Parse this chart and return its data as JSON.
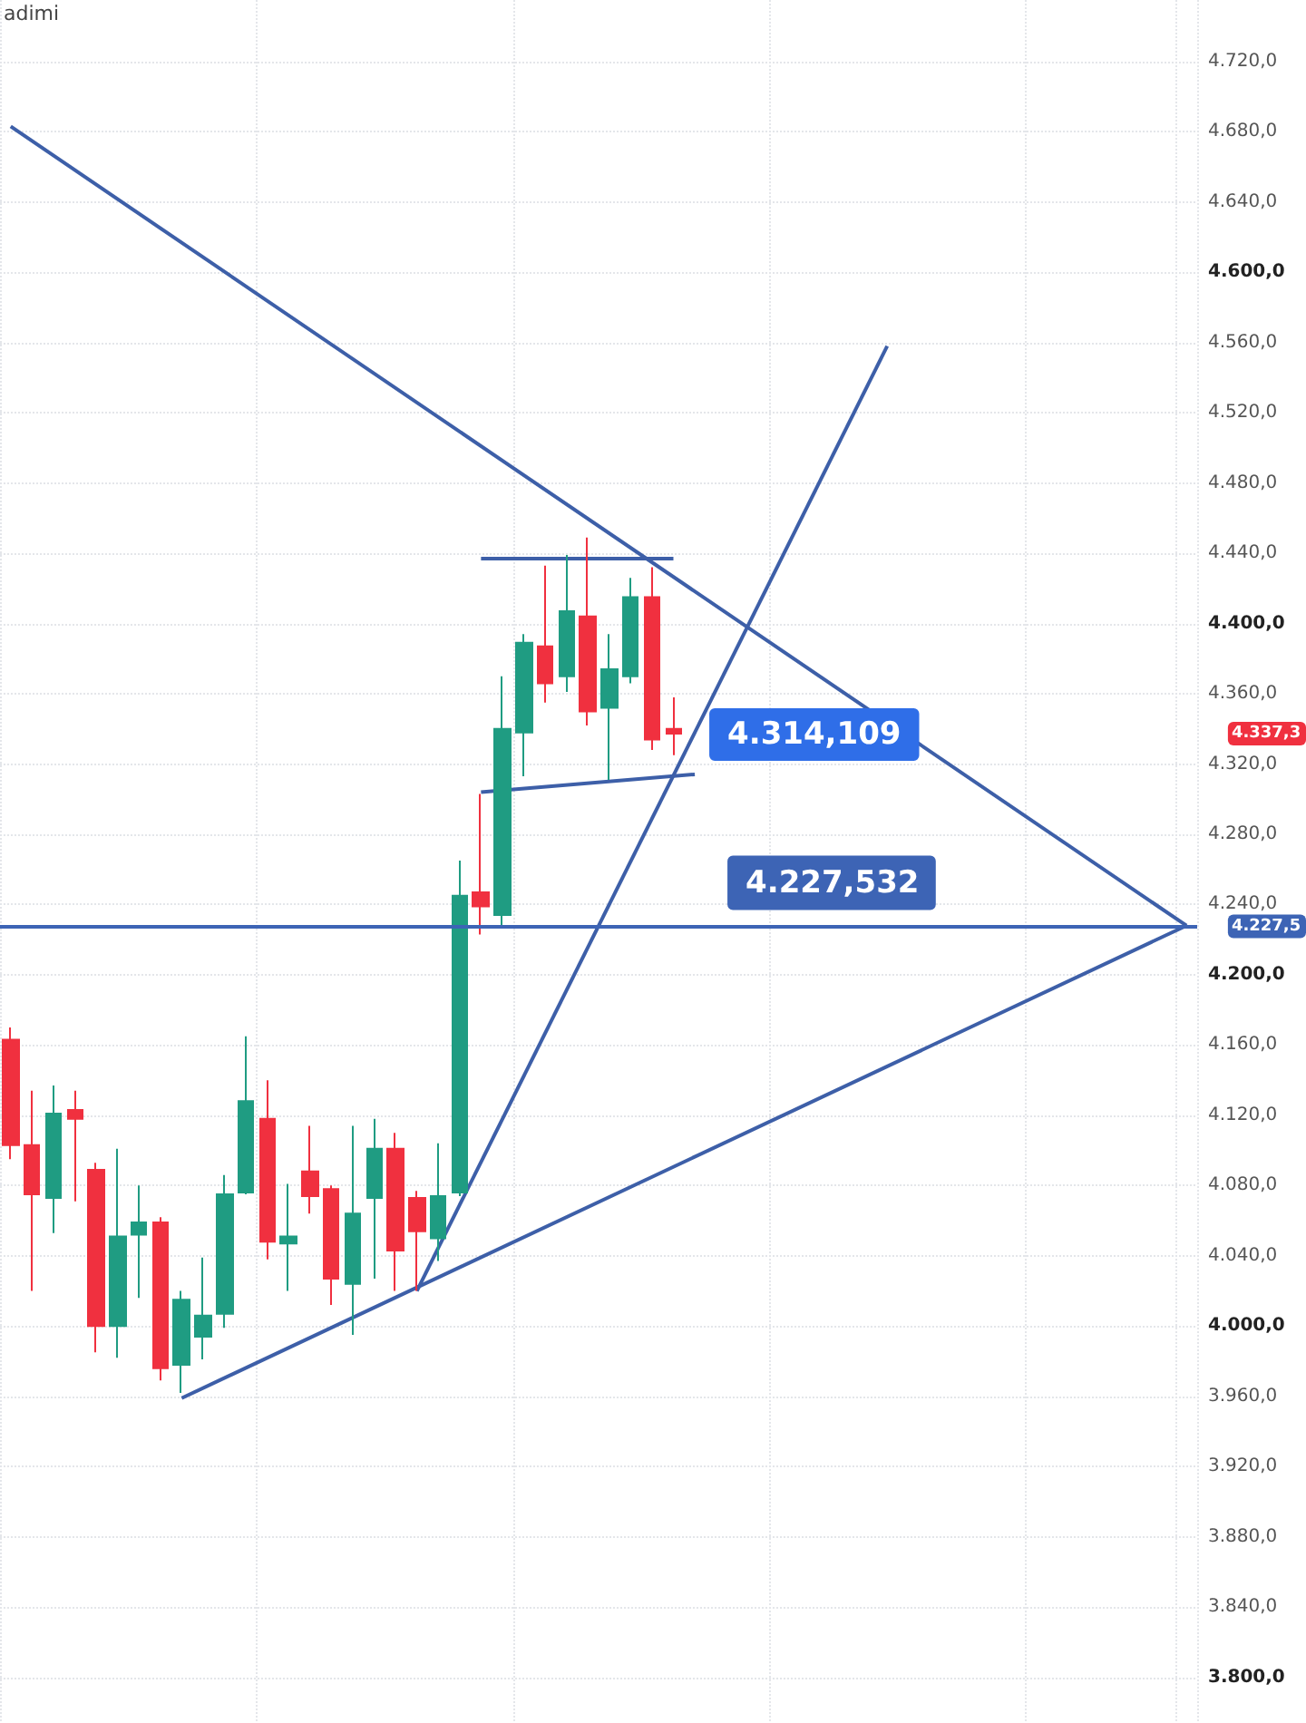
{
  "chart_data": {
    "type": "candlestick",
    "categories": [
      null,
      null,
      null,
      null,
      null,
      null,
      null,
      null,
      null,
      null,
      null,
      null,
      null,
      null,
      null,
      null,
      null,
      null,
      null,
      null,
      null,
      null,
      null,
      null,
      null,
      null,
      null,
      null,
      null,
      null,
      null,
      null,
      null,
      null,
      null,
      null,
      null,
      null,
      null,
      null,
      null,
      null,
      null,
      null,
      null,
      null,
      null,
      null,
      null,
      null,
      null,
      null,
      null,
      null,
      null,
      null
    ],
    "ohlc": [
      [
        4163,
        4170,
        4095,
        4103
      ],
      [
        4103,
        4134,
        4020,
        4075
      ],
      [
        4073,
        4137,
        4053,
        4121
      ],
      [
        4123,
        4134,
        4071,
        4118
      ],
      [
        4089,
        4093,
        3985,
        4000
      ],
      [
        4000,
        4101,
        3982,
        4051
      ],
      [
        4052,
        4080,
        4016,
        4059
      ],
      [
        4059,
        4062,
        3969,
        3976
      ],
      [
        3978,
        4020,
        3962,
        4015
      ],
      [
        3994,
        4039,
        3981,
        4006
      ],
      [
        4007,
        4086,
        3999,
        4075
      ],
      [
        4076,
        4165,
        4075,
        4128
      ],
      [
        4118,
        4140,
        4038,
        4048
      ],
      [
        4047,
        4081,
        4020,
        4051
      ],
      [
        4088,
        4114,
        4064,
        4074
      ],
      [
        4078,
        4080,
        4012,
        4027
      ],
      [
        4024,
        4114,
        3995,
        4064
      ],
      [
        4073,
        4118,
        4027,
        4101
      ],
      [
        4101,
        4110,
        4020,
        4043
      ],
      [
        4073,
        4077,
        4020,
        4054
      ],
      [
        4050,
        4104,
        4037,
        4074
      ],
      [
        4076,
        4265,
        4074,
        4245
      ],
      [
        4247,
        4303,
        4223,
        4239
      ],
      [
        4234,
        4370,
        4228,
        4340
      ],
      [
        4338,
        4394,
        4313,
        4389
      ],
      [
        4387,
        4433,
        4355,
        4366
      ],
      [
        4370,
        4439,
        4361,
        4407
      ],
      [
        4404,
        4449,
        4342,
        4350
      ],
      [
        4352,
        4394,
        4311,
        4374
      ],
      [
        4370,
        4426,
        4366,
        4415
      ],
      [
        4415,
        4432,
        4328,
        4334
      ],
      [
        4340,
        4358,
        4325,
        4337.3
      ],
      null,
      null,
      null,
      null,
      null,
      null,
      null,
      null,
      null,
      null,
      null,
      null,
      null,
      null,
      null,
      null,
      null,
      null,
      null,
      null,
      null,
      null,
      null,
      null
    ],
    "series": [
      {
        "type": "line",
        "color": "#3d5fa8",
        "values": [
          4683,
          null,
          null,
          null,
          null,
          null,
          null,
          null,
          null,
          null,
          null,
          null,
          null,
          null,
          null,
          null,
          null,
          null,
          null,
          null,
          null,
          null,
          null,
          null,
          null,
          null,
          null,
          null,
          null,
          null,
          null,
          null,
          null,
          null,
          null,
          null,
          null,
          null,
          null,
          null,
          null,
          null,
          null,
          null,
          null,
          null,
          null,
          null,
          null,
          null,
          null,
          null,
          null,
          null,
          null,
          4228
        ]
      },
      {
        "type": "line",
        "color": "#3d5fa8",
        "values": [
          null,
          null,
          null,
          null,
          null,
          null,
          null,
          null,
          3959,
          null,
          null,
          null,
          null,
          null,
          null,
          null,
          null,
          null,
          null,
          null,
          null,
          null,
          null,
          null,
          null,
          null,
          null,
          null,
          null,
          null,
          null,
          null,
          null,
          null,
          null,
          null,
          null,
          null,
          null,
          null,
          null,
          null,
          null,
          null,
          null,
          null,
          null,
          null,
          null,
          null,
          null,
          null,
          null,
          null,
          null,
          4228
        ]
      },
      {
        "type": "line",
        "color": "#3d5fa8",
        "values": [
          null,
          null,
          null,
          null,
          null,
          null,
          null,
          null,
          null,
          null,
          null,
          null,
          null,
          null,
          null,
          null,
          null,
          null,
          null,
          4020,
          null,
          null,
          null,
          null,
          null,
          null,
          null,
          null,
          null,
          null,
          null,
          null,
          null,
          null,
          null,
          null,
          null,
          null,
          null,
          null,
          null,
          4558,
          null,
          null,
          null,
          null,
          null,
          null,
          null,
          null,
          null,
          null,
          null,
          null,
          null,
          null
        ]
      },
      {
        "type": "line",
        "color": "#3d5fa8",
        "values": [
          null,
          null,
          null,
          null,
          null,
          null,
          null,
          null,
          null,
          null,
          null,
          null,
          null,
          null,
          null,
          null,
          null,
          null,
          null,
          null,
          null,
          null,
          4437,
          null,
          null,
          null,
          null,
          null,
          null,
          null,
          null,
          4437,
          null,
          null,
          null,
          null,
          null,
          null,
          null,
          null,
          null,
          null,
          null,
          null,
          null,
          null,
          null,
          null,
          null,
          null,
          null,
          null,
          null,
          null,
          null,
          null
        ]
      },
      {
        "type": "line",
        "color": "#3d5fa8",
        "values": [
          null,
          null,
          null,
          null,
          null,
          null,
          null,
          null,
          null,
          null,
          null,
          null,
          null,
          null,
          null,
          null,
          null,
          null,
          null,
          null,
          null,
          null,
          4304,
          null,
          null,
          null,
          null,
          null,
          null,
          null,
          null,
          null,
          4314.109,
          null,
          null,
          null,
          null,
          null,
          null,
          null,
          null,
          null,
          null,
          null,
          null,
          null,
          null,
          null,
          null,
          null,
          null,
          null,
          null,
          null,
          null,
          null
        ],
        "value_labels": [
          null,
          null,
          null,
          null,
          null,
          null,
          null,
          null,
          null,
          null,
          null,
          null,
          null,
          null,
          null,
          null,
          null,
          null,
          null,
          null,
          null,
          null,
          null,
          null,
          null,
          null,
          null,
          null,
          null,
          null,
          null,
          null,
          "4.314,109",
          null,
          null,
          null,
          null,
          null,
          null,
          null,
          null,
          null,
          null,
          null,
          null,
          null,
          null,
          null,
          null,
          null,
          null,
          null,
          null,
          null,
          null,
          null
        ]
      }
    ],
    "ylim": [
      3774,
      4755
    ],
    "yticks": [
      {
        "value": 3800,
        "label": "3.800,0"
      },
      {
        "value": 3840,
        "label": "3.840,0"
      },
      {
        "value": 3880,
        "label": "3.880,0"
      },
      {
        "value": 3920,
        "label": "3.920,0"
      },
      {
        "value": 3960,
        "label": "3.960,0"
      },
      {
        "value": 4000,
        "label": "4.000,0"
      },
      {
        "value": 4040,
        "label": "4.040,0"
      },
      {
        "value": 4080,
        "label": "4.080,0"
      },
      {
        "value": 4120,
        "label": "4.120,0"
      },
      {
        "value": 4160,
        "label": "4.160,0"
      },
      {
        "value": 4200,
        "label": "4.200,0"
      },
      {
        "value": 4240,
        "label": "4.240,0"
      },
      {
        "value": 4280,
        "label": "4.280,0"
      },
      {
        "value": 4320,
        "label": "4.320,0"
      },
      {
        "value": 4360,
        "label": "4.360,0"
      },
      {
        "value": 4400,
        "label": "4.400,0"
      },
      {
        "value": 4440,
        "label": "4.440,0"
      },
      {
        "value": 4480,
        "label": "4.480,0"
      },
      {
        "value": 4520,
        "label": "4.520,0"
      },
      {
        "value": 4560,
        "label": "4.560,0"
      },
      {
        "value": 4600,
        "label": "4.600,0"
      },
      {
        "value": 4640,
        "label": "4.640,0"
      },
      {
        "value": 4680,
        "label": "4.680,0"
      },
      {
        "value": 4720,
        "label": "4.720,0"
      }
    ],
    "ref_lines": [
      {
        "axis": "y",
        "value": 4227.532,
        "label": "4.227,532",
        "color": "#3d64b5"
      }
    ],
    "annotations": [
      "adimi",
      "4.337,3",
      "4.227,5"
    ],
    "grid": true,
    "tick_labels": "y"
  }
}
